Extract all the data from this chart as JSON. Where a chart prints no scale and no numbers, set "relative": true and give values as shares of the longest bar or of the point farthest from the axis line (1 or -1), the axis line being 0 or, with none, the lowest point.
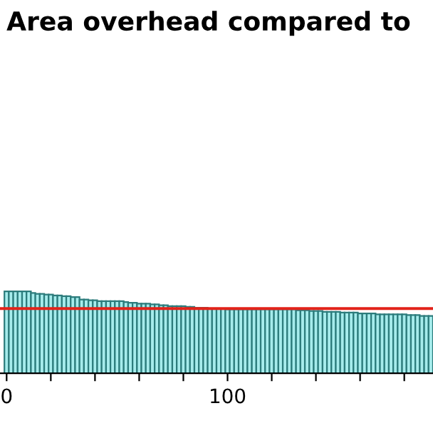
{
  "chart_data": {
    "type": "bar",
    "title": "Area overhead compared to",
    "relative": true,
    "x": [
      0,
      2,
      4,
      6,
      8,
      10,
      12,
      14,
      16,
      18,
      20,
      22,
      24,
      26,
      28,
      30,
      32,
      34,
      36,
      38,
      40,
      42,
      44,
      46,
      48,
      50,
      52,
      54,
      56,
      58,
      60,
      62,
      64,
      66,
      68,
      70,
      72,
      74,
      76,
      78,
      80,
      82,
      84,
      86,
      88,
      90,
      92,
      94,
      96,
      98,
      100,
      102,
      104,
      106,
      108,
      110,
      112,
      114,
      116,
      118,
      120,
      122,
      124,
      126,
      128,
      130,
      132,
      134,
      136,
      138,
      140,
      142,
      144,
      146,
      148,
      150,
      152,
      154,
      156,
      158,
      160,
      162,
      164,
      166,
      168,
      170,
      172,
      174,
      176,
      178,
      180,
      182,
      184,
      186,
      188,
      190,
      192
    ],
    "values": [
      1.0,
      1.0,
      1.0,
      1.0,
      1.0,
      1.0,
      0.98,
      0.97,
      0.97,
      0.96,
      0.96,
      0.95,
      0.95,
      0.94,
      0.94,
      0.93,
      0.93,
      0.9,
      0.9,
      0.89,
      0.89,
      0.88,
      0.88,
      0.88,
      0.88,
      0.88,
      0.88,
      0.87,
      0.86,
      0.86,
      0.85,
      0.85,
      0.85,
      0.84,
      0.84,
      0.83,
      0.83,
      0.82,
      0.82,
      0.82,
      0.82,
      0.81,
      0.81,
      0.8,
      0.8,
      0.8,
      0.79,
      0.79,
      0.79,
      0.79,
      0.78,
      0.78,
      0.78,
      0.78,
      0.78,
      0.78,
      0.78,
      0.78,
      0.78,
      0.78,
      0.78,
      0.78,
      0.78,
      0.78,
      0.78,
      0.78,
      0.77,
      0.77,
      0.77,
      0.76,
      0.76,
      0.76,
      0.75,
      0.75,
      0.75,
      0.75,
      0.74,
      0.74,
      0.74,
      0.74,
      0.73,
      0.73,
      0.73,
      0.73,
      0.72,
      0.72,
      0.72,
      0.72,
      0.72,
      0.72,
      0.72,
      0.71,
      0.71,
      0.71,
      0.7,
      0.7,
      0.7
    ],
    "color": "#a6ecec",
    "xlim": [
      -3,
      193
    ],
    "xticks": [
      0,
      {
        "value": 20,
        "label": null
      },
      {
        "value": 40,
        "label": null
      },
      {
        "value": 60,
        "label": null
      },
      {
        "value": 80,
        "label": null
      },
      100,
      {
        "value": 120,
        "label": null
      },
      {
        "value": 140,
        "label": null
      },
      {
        "value": 160,
        "label": null
      },
      {
        "value": 180,
        "label": null
      }
    ],
    "tick_labels": "x",
    "ref_lines": [
      {
        "axis": "y",
        "value": 0.79,
        "color": "#e2231a"
      }
    ]
  }
}
